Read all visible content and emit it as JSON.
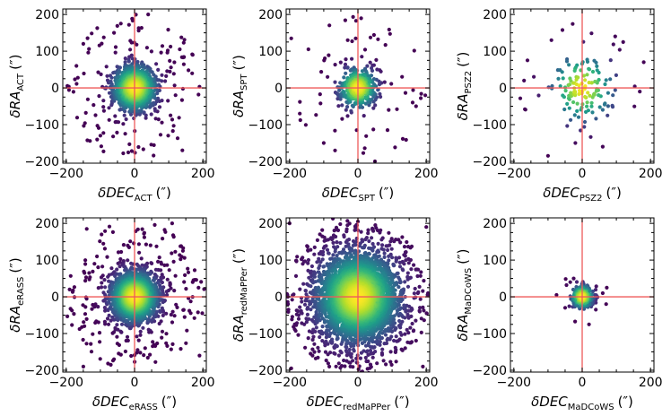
{
  "figure": {
    "description_free": true
  },
  "colors": {
    "crosshair": "#ef5a5a",
    "frame": "#000000",
    "viridis": [
      "#440154",
      "#482878",
      "#3e4989",
      "#31688e",
      "#26828e",
      "#1f9e89",
      "#35b779",
      "#6ece58",
      "#b5de2b",
      "#fde725"
    ]
  },
  "chart_data": [
    {
      "type": "scatter",
      "panel": "ACT",
      "xlabel_main": "δDEC",
      "xlabel_sub": "ACT",
      "xlabel_unit": "(″)",
      "ylabel_main": "δRA",
      "ylabel_sub": "ACT",
      "ylabel_unit": "(″)",
      "xlim": [
        -210,
        210
      ],
      "ylim": [
        -205,
        215
      ],
      "xticks": [
        -200,
        0,
        200
      ],
      "yticks": [
        -200,
        -100,
        0,
        100,
        200
      ],
      "xtick_labels": [
        "−200",
        "0",
        "200"
      ],
      "ytick_labels": [
        "−200",
        "−100",
        "0",
        "100",
        "200"
      ],
      "crosshair": [
        0,
        0
      ],
      "distribution": {
        "n_core": 1400,
        "sigma_core": 28,
        "n_tail": 170,
        "tail_max": 200,
        "color_by_density": true
      },
      "sample_points": [
        [
          -150,
          120
        ],
        [
          -170,
          60
        ],
        [
          40,
          200
        ],
        [
          140,
          -170
        ],
        [
          -100,
          -130
        ],
        [
          170,
          90
        ],
        [
          -60,
          150
        ],
        [
          120,
          -20
        ]
      ]
    },
    {
      "type": "scatter",
      "panel": "SPT",
      "xlabel_main": "δDEC",
      "xlabel_sub": "SPT",
      "xlabel_unit": "(″)",
      "ylabel_main": "δRA",
      "ylabel_sub": "SPT",
      "ylabel_unit": "(″)",
      "xlim": [
        -210,
        210
      ],
      "ylim": [
        -205,
        215
      ],
      "xticks": [
        -200,
        0,
        200
      ],
      "yticks": [
        -200,
        -100,
        0,
        100,
        200
      ],
      "xtick_labels": [
        "−200",
        "0",
        "200"
      ],
      "ytick_labels": [
        "−200",
        "−100",
        "0",
        "100",
        "200"
      ],
      "crosshair": [
        0,
        0
      ],
      "distribution": {
        "n_core": 500,
        "sigma_core": 24,
        "n_tail": 70,
        "tail_max": 200,
        "color_by_density": true
      },
      "sample_points": [
        [
          -195,
          135
        ],
        [
          -145,
          105
        ],
        [
          -170,
          -70
        ],
        [
          50,
          -200
        ],
        [
          -100,
          -150
        ],
        [
          90,
          -60
        ],
        [
          -30,
          130
        ],
        [
          160,
          -40
        ]
      ]
    },
    {
      "type": "scatter",
      "panel": "PSZ2",
      "xlabel_main": "δDEC",
      "xlabel_sub": "PSZ2",
      "xlabel_unit": "(″)",
      "ylabel_main": "δRA",
      "ylabel_sub": "PSZ2",
      "ylabel_unit": "(″)",
      "xlim": [
        -210,
        210
      ],
      "ylim": [
        -205,
        215
      ],
      "xticks": [
        -200,
        0,
        200
      ],
      "yticks": [
        -200,
        -100,
        0,
        100,
        200
      ],
      "xtick_labels": [
        "−200",
        "0",
        "200"
      ],
      "ytick_labels": [
        "−200",
        "−100",
        "0",
        "100",
        "200"
      ],
      "crosshair": [
        0,
        0
      ],
      "distribution": {
        "n_core": 110,
        "sigma_core": 40,
        "n_tail": 35,
        "tail_max": 190,
        "color_by_density": true
      },
      "sample_points": [
        [
          -90,
          130
        ],
        [
          -160,
          75
        ],
        [
          -170,
          20
        ],
        [
          120,
          125
        ],
        [
          180,
          70
        ],
        [
          -20,
          -150
        ],
        [
          -100,
          -185
        ],
        [
          60,
          -160
        ]
      ]
    },
    {
      "type": "scatter",
      "panel": "eRASS",
      "xlabel_main": "δDEC",
      "xlabel_sub": "eRASS",
      "xlabel_unit": "(″)",
      "ylabel_main": "δRA",
      "ylabel_sub": "eRASS",
      "ylabel_unit": "(″)",
      "xlim": [
        -210,
        210
      ],
      "ylim": [
        -205,
        215
      ],
      "xticks": [
        -200,
        0,
        200
      ],
      "yticks": [
        -200,
        -100,
        0,
        100,
        200
      ],
      "xtick_labels": [
        "−200",
        "0",
        "200"
      ],
      "ytick_labels": [
        "−200",
        "−100",
        "0",
        "100",
        "200"
      ],
      "crosshair": [
        0,
        0
      ],
      "distribution": {
        "n_core": 2400,
        "sigma_core": 30,
        "n_tail": 320,
        "tail_max": 205,
        "color_by_density": true
      },
      "sample_points": [
        [
          -140,
          185
        ],
        [
          -190,
          20
        ],
        [
          190,
          -160
        ],
        [
          -150,
          -190
        ],
        [
          110,
          200
        ],
        [
          -60,
          -170
        ],
        [
          170,
          40
        ],
        [
          -110,
          110
        ]
      ]
    },
    {
      "type": "scatter",
      "panel": "redMaPPer",
      "xlabel_main": "δDEC",
      "xlabel_sub": "redMaPPer",
      "xlabel_unit": "(″)",
      "ylabel_main": "δRA",
      "ylabel_sub": "redMaPPer",
      "ylabel_unit": "(″)",
      "xlim": [
        -210,
        210
      ],
      "ylim": [
        -205,
        215
      ],
      "xticks": [
        -200,
        0,
        200
      ],
      "yticks": [
        -200,
        -100,
        0,
        100,
        200
      ],
      "xtick_labels": [
        "−200",
        "0",
        "200"
      ],
      "ytick_labels": [
        "−200",
        "−100",
        "0",
        "100",
        "200"
      ],
      "crosshair": [
        0,
        0
      ],
      "distribution": {
        "n_core": 3800,
        "sigma_core": 52,
        "n_tail": 700,
        "tail_max": 210,
        "color_by_density": true
      },
      "sample_points": [
        [
          -200,
          200
        ],
        [
          200,
          190
        ],
        [
          -195,
          -195
        ],
        [
          190,
          -190
        ],
        [
          0,
          205
        ],
        [
          -205,
          0
        ],
        [
          205,
          10
        ],
        [
          10,
          -205
        ]
      ]
    },
    {
      "type": "scatter",
      "panel": "MaDCoWS",
      "xlabel_main": "δDEC",
      "xlabel_sub": "MaDCoWS",
      "xlabel_unit": "(″)",
      "ylabel_main": "δRA",
      "ylabel_sub": "MaDCoWS",
      "ylabel_unit": "(″)",
      "xlim": [
        -210,
        210
      ],
      "ylim": [
        -205,
        215
      ],
      "xticks": [
        -200,
        0,
        200
      ],
      "yticks": [
        -200,
        -100,
        0,
        100,
        200
      ],
      "xtick_labels": [
        "−200",
        "0",
        "200"
      ],
      "ytick_labels": [
        "−200",
        "−100",
        "0",
        "100",
        "200"
      ],
      "crosshair": [
        0,
        0
      ],
      "distribution": {
        "n_core": 260,
        "sigma_core": 14,
        "n_tail": 14,
        "tail_max": 80,
        "color_by_density": true
      },
      "sample_points": [
        [
          -75,
          5
        ],
        [
          60,
          10
        ],
        [
          -50,
          -30
        ],
        [
          40,
          -35
        ],
        [
          -25,
          50
        ],
        [
          20,
          -75
        ],
        [
          70,
          -20
        ],
        [
          -35,
          40
        ]
      ]
    }
  ]
}
